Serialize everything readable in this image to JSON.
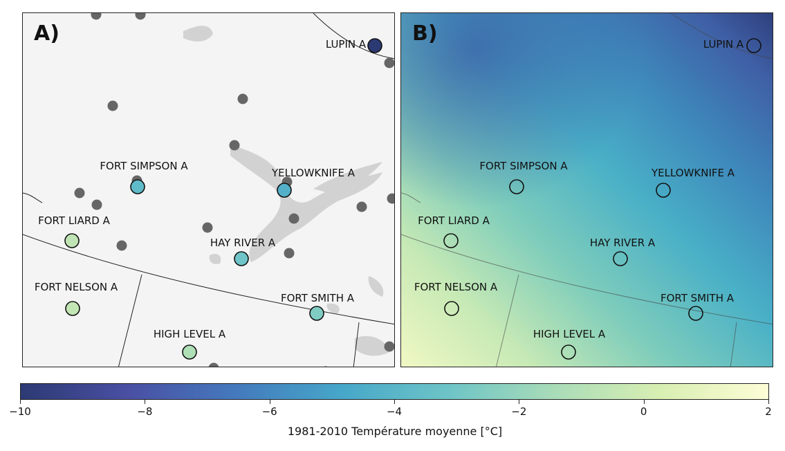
{
  "panels": [
    {
      "letter": "A)"
    },
    {
      "letter": "B)"
    }
  ],
  "stations": [
    {
      "name": "LUPIN A",
      "temp": -10
    },
    {
      "name": "FORT SIMPSON A",
      "temp": -3.7
    },
    {
      "name": "YELLOWKNIFE A",
      "temp": -4.3
    },
    {
      "name": "FORT LIARD A",
      "temp": -0.6
    },
    {
      "name": "HAY RIVER A",
      "temp": -3.1
    },
    {
      "name": "FORT NELSON A",
      "temp": -0.5
    },
    {
      "name": "FORT SMITH A",
      "temp": -2.6
    },
    {
      "name": "HIGH LEVEL A",
      "temp": -1.2
    }
  ],
  "colorbar": {
    "label": "1981-2010 Température moyenne  [°C]",
    "range": [
      -10,
      2
    ],
    "ticks": [
      "−10",
      "−8",
      "−6",
      "−4",
      "−2",
      "0",
      "2"
    ],
    "tick_values": [
      -10,
      -8,
      -6,
      -4,
      -2,
      0,
      2
    ],
    "colors": [
      "#2c3a74",
      "#4a4fa3",
      "#4479bd",
      "#46a7c9",
      "#6dc4c7",
      "#a9dcb8",
      "#d9efb2",
      "#fdfdd6"
    ]
  }
}
